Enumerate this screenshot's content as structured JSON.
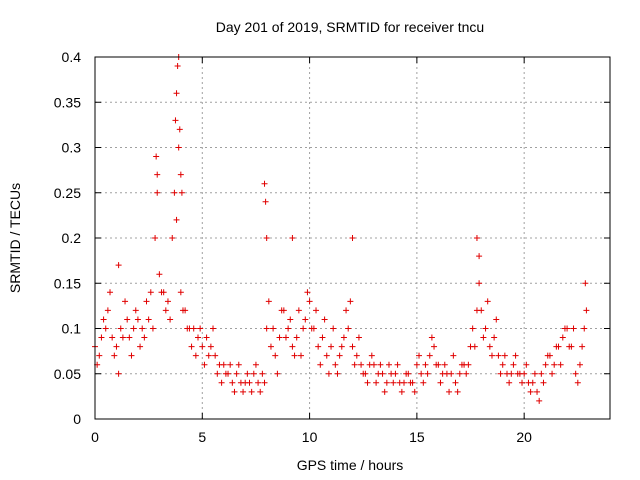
{
  "chart_data": {
    "type": "scatter",
    "title": "Day 201 of 2019, SRMTID for receiver tncu",
    "xlabel": "GPS time / hours",
    "ylabel": "SRMTID / TECUs",
    "xlim": [
      0,
      24
    ],
    "ylim": [
      0,
      0.4
    ],
    "x_ticks": [
      0,
      5,
      10,
      15,
      20
    ],
    "x_tick_labels": [
      "0",
      "5",
      "10",
      "15",
      "20"
    ],
    "y_ticks": [
      0,
      0.05,
      0.1,
      0.15,
      0.2,
      0.25,
      0.3,
      0.35,
      0.4
    ],
    "y_tick_labels": [
      "0",
      "0.05",
      "0.1",
      "0.15",
      "0.2",
      "0.25",
      "0.3",
      "0.35",
      "0.4"
    ],
    "grid": true,
    "marker": "plus",
    "marker_color": "#e00000",
    "series": [
      {
        "name": "SRMTID",
        "x": [
          0.0,
          0.2,
          0.4,
          0.6,
          0.8,
          1.0,
          1.2,
          1.4,
          1.6,
          1.8,
          2.0,
          2.2,
          2.4,
          2.6,
          2.8,
          3.0,
          3.2,
          3.4,
          3.6,
          3.8,
          4.0,
          4.2,
          4.4,
          4.6,
          4.8,
          5.0,
          5.2,
          5.4,
          5.6,
          5.8,
          6.0,
          6.2,
          6.4,
          6.6,
          6.8,
          7.0,
          7.2,
          7.4,
          7.6,
          7.8,
          8.0,
          8.2,
          8.4,
          8.6,
          8.8,
          9.0,
          9.2,
          9.4,
          9.6,
          9.8,
          10.0,
          10.2,
          10.4,
          10.6,
          10.8,
          11.0,
          11.2,
          11.4,
          11.6,
          11.8,
          12.0,
          12.2,
          12.4,
          12.6,
          12.8,
          13.0,
          13.2,
          13.4,
          13.6,
          13.8,
          14.0,
          14.2,
          14.4,
          14.6,
          14.8,
          15.0,
          15.2,
          15.4,
          15.6,
          15.8,
          16.0,
          16.2,
          16.4,
          16.6,
          16.8,
          17.0,
          17.2,
          17.4,
          17.6,
          17.8,
          18.0,
          18.2,
          18.4,
          18.6,
          18.8,
          19.0,
          19.2,
          19.4,
          19.6,
          19.8,
          20.0,
          20.2,
          20.4,
          20.6,
          20.8,
          21.0,
          21.2,
          21.4,
          21.6,
          21.8,
          22.0,
          22.2,
          22.4,
          22.6,
          22.8,
          0.1,
          0.3,
          0.5,
          0.7,
          0.9,
          1.1,
          1.3,
          1.5,
          1.7,
          1.9,
          2.1,
          2.3,
          2.5,
          2.7,
          2.9,
          3.1,
          3.3,
          3.5,
          3.7,
          3.9,
          4.1,
          4.3,
          4.5,
          4.7,
          4.9,
          5.1,
          5.3,
          5.5,
          5.7,
          5.9,
          6.1,
          6.3,
          6.5,
          6.7,
          6.9,
          7.1,
          7.3,
          7.5,
          7.7,
          7.9,
          8.1,
          8.3,
          8.5,
          8.7,
          8.9,
          9.1,
          9.3,
          9.5,
          9.7,
          9.9,
          10.1,
          10.3,
          10.5,
          10.7,
          10.9,
          11.1,
          11.3,
          11.5,
          11.7,
          11.9,
          12.1,
          12.3,
          12.5,
          12.7,
          12.9,
          13.1,
          13.3,
          13.5,
          13.7,
          13.9,
          14.1,
          14.3,
          14.5,
          14.7,
          14.9,
          15.1,
          15.3,
          15.5,
          15.7,
          15.9,
          16.1,
          16.3,
          16.5,
          16.7,
          16.9,
          17.1,
          17.3,
          17.5,
          17.7,
          17.9,
          18.1,
          18.3,
          18.5,
          18.7,
          18.9,
          19.1,
          19.3,
          19.5,
          19.7,
          19.9,
          20.1,
          20.3,
          20.5,
          20.7,
          20.9,
          21.1,
          21.3,
          21.5,
          21.7,
          21.9,
          22.1,
          22.3,
          22.5,
          22.7,
          22.9,
          2.85,
          2.9,
          3.75,
          3.8,
          3.85,
          3.9,
          3.95,
          4.0,
          4.05,
          7.9,
          7.95,
          8.0,
          12.0,
          17.8,
          17.9,
          22.85,
          1.1,
          9.2
        ],
        "y": [
          0.08,
          0.07,
          0.11,
          0.12,
          0.09,
          0.08,
          0.1,
          0.13,
          0.09,
          0.1,
          0.11,
          0.1,
          0.13,
          0.14,
          0.2,
          0.16,
          0.14,
          0.13,
          0.2,
          0.22,
          0.14,
          0.12,
          0.1,
          0.1,
          0.09,
          0.08,
          0.09,
          0.08,
          0.07,
          0.06,
          0.06,
          0.05,
          0.04,
          0.05,
          0.04,
          0.04,
          0.04,
          0.05,
          0.04,
          0.05,
          0.1,
          0.08,
          0.07,
          0.09,
          0.12,
          0.1,
          0.08,
          0.09,
          0.07,
          0.11,
          0.13,
          0.1,
          0.08,
          0.09,
          0.07,
          0.08,
          0.06,
          0.07,
          0.09,
          0.1,
          0.08,
          0.07,
          0.06,
          0.05,
          0.06,
          0.06,
          0.05,
          0.05,
          0.04,
          0.05,
          0.05,
          0.04,
          0.04,
          0.05,
          0.04,
          0.06,
          0.05,
          0.06,
          0.07,
          0.08,
          0.06,
          0.05,
          0.05,
          0.05,
          0.04,
          0.05,
          0.06,
          0.06,
          0.1,
          0.12,
          0.12,
          0.1,
          0.08,
          0.09,
          0.07,
          0.06,
          0.05,
          0.05,
          0.07,
          0.05,
          0.05,
          0.04,
          0.04,
          0.03,
          0.05,
          0.06,
          0.07,
          0.06,
          0.08,
          0.09,
          0.1,
          0.08,
          0.05,
          0.06,
          0.1,
          0.06,
          0.09,
          0.1,
          0.14,
          0.07,
          0.05,
          0.09,
          0.11,
          0.07,
          0.12,
          0.08,
          0.09,
          0.11,
          0.1,
          0.25,
          0.14,
          0.12,
          0.11,
          0.25,
          0.3,
          0.12,
          0.1,
          0.08,
          0.07,
          0.1,
          0.06,
          0.07,
          0.1,
          0.05,
          0.04,
          0.05,
          0.06,
          0.03,
          0.06,
          0.03,
          0.05,
          0.03,
          0.06,
          0.03,
          0.04,
          0.13,
          0.1,
          0.05,
          0.12,
          0.09,
          0.11,
          0.07,
          0.12,
          0.1,
          0.14,
          0.1,
          0.12,
          0.06,
          0.11,
          0.05,
          0.1,
          0.05,
          0.08,
          0.12,
          0.13,
          0.06,
          0.09,
          0.05,
          0.04,
          0.07,
          0.04,
          0.06,
          0.03,
          0.06,
          0.04,
          0.06,
          0.03,
          0.05,
          0.04,
          0.03,
          0.07,
          0.04,
          0.05,
          0.09,
          0.06,
          0.04,
          0.06,
          0.03,
          0.07,
          0.03,
          0.06,
          0.05,
          0.08,
          0.08,
          0.15,
          0.09,
          0.13,
          0.07,
          0.11,
          0.05,
          0.07,
          0.04,
          0.06,
          0.05,
          0.04,
          0.06,
          0.03,
          0.05,
          0.02,
          0.04,
          0.07,
          0.05,
          0.08,
          0.06,
          0.1,
          0.08,
          0.1,
          0.04,
          0.08,
          0.12,
          0.29,
          0.27,
          0.33,
          0.36,
          0.39,
          0.4,
          0.32,
          0.27,
          0.25,
          0.26,
          0.24,
          0.2,
          0.2,
          0.2,
          0.18,
          0.15,
          0.17,
          0.2
        ]
      }
    ]
  }
}
